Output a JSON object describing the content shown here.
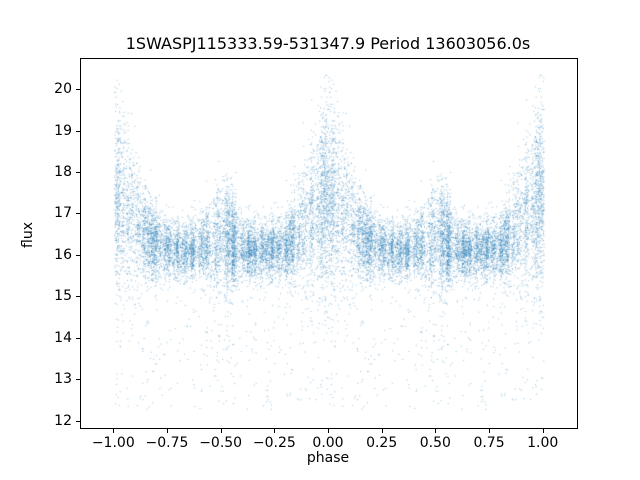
{
  "chart_data": {
    "type": "scatter",
    "title": "1SWASPJ115333.59-531347.9 Period 13603056.0s",
    "xlabel": "phase",
    "ylabel": "flux",
    "xlim": [
      -1.155,
      1.155
    ],
    "ylim": [
      11.85,
      20.75
    ],
    "x_ticks": {
      "values": [
        -1.0,
        -0.75,
        -0.5,
        -0.25,
        0.0,
        0.25,
        0.5,
        0.75,
        1.0
      ],
      "labels": [
        "−1.00",
        "−0.75",
        "−0.50",
        "−0.25",
        "0.00",
        "0.25",
        "0.50",
        "0.75",
        "1.00"
      ]
    },
    "y_ticks": {
      "values": [
        12,
        13,
        14,
        15,
        16,
        17,
        18,
        19,
        20
      ],
      "labels": [
        "12",
        "13",
        "14",
        "15",
        "16",
        "17",
        "18",
        "19",
        "20"
      ]
    },
    "marker": {
      "color": "#1f77b4",
      "alpha": 0.45,
      "size": 1
    },
    "grid": false,
    "legend": null,
    "scatter_model": {
      "description": "phase-folded light curve plotted twice (phase-1 and phase), dense band near flux 16-17 with broad bright flaring envelope centered at phase 0 and +/-1 reaching flux 20.3, mild excess near phase +/-0.5, sparse faint outlier columns down to flux 12.3",
      "seed": 7,
      "n_base_points": 9000,
      "n_columns": 160,
      "column_prob": 0.65,
      "column_jitter": 0.005,
      "base_flux": 16.15,
      "base_sigma": 0.34,
      "peak_width": 0.09,
      "peak_amplitude": 1.25,
      "peak_sigma_boost": 0.85,
      "half_phase_width": 0.05,
      "half_phase_amplitude": 0.3,
      "half_phase_sigma_boost": 0.35,
      "low_outlier_prob": 0.03,
      "low_outlier_range": [
        12.3,
        15.2
      ],
      "flux_min": 12.2,
      "flux_max": 20.4
    }
  }
}
